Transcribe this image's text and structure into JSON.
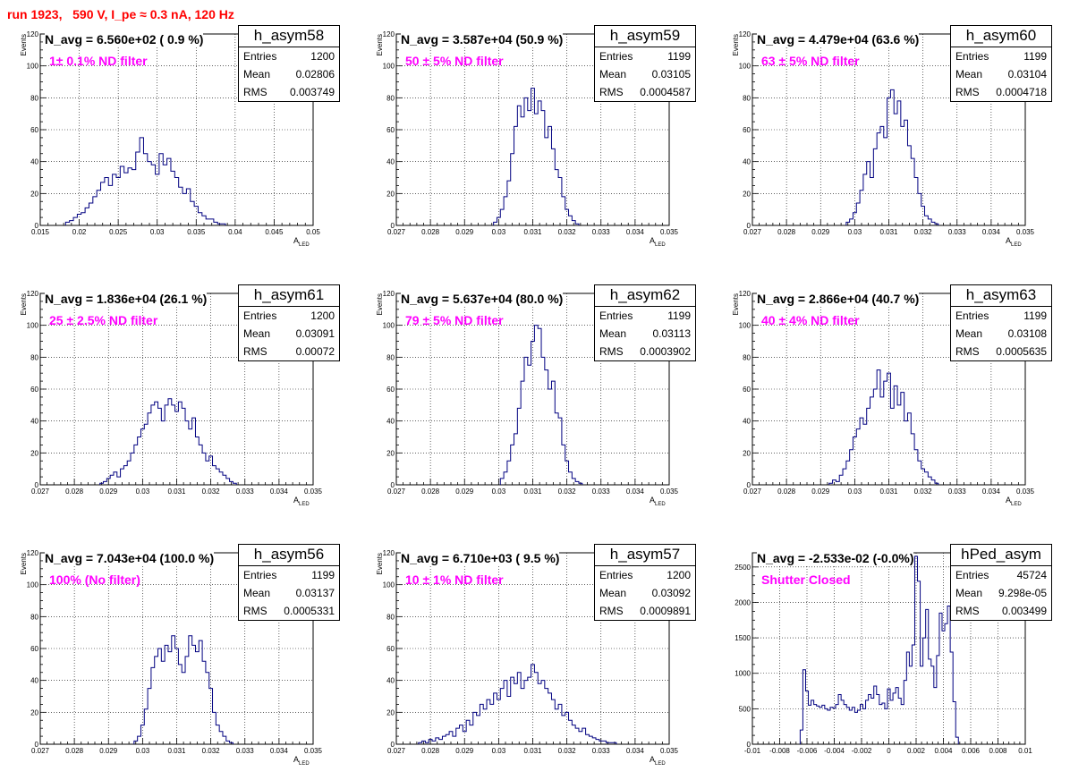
{
  "page_title": "run 1923,   590 V, I_pe ≈ 0.3 nA, 120 Hz",
  "colors": {
    "title": "#ff0000",
    "filter_label": "#ff00ff",
    "histogram": "#000080",
    "grid": "#000000"
  },
  "stats_labels": {
    "entries": "Entries",
    "mean": "Mean",
    "rms": "RMS"
  },
  "chart_data": [
    {
      "type": "histogram",
      "name": "h_asym58",
      "navg": "N_avg = 6.560e+02 ( 0.9 %)",
      "filter": "1± 0.1% ND filter",
      "entries": "1200",
      "mean": "0.02806",
      "rms": "0.003749",
      "xlabel_main": "A",
      "xlabel_sub": "LED",
      "ylabel": "Events",
      "xlim": [
        0.015,
        0.05
      ],
      "ylim": [
        0,
        120
      ],
      "xticks": [
        "0.015",
        "0.02",
        "0.025",
        "0.03",
        "0.035",
        "0.04",
        "0.045",
        "0.05"
      ],
      "xtick_values": [
        0.015,
        0.02,
        0.025,
        0.03,
        0.035,
        0.04,
        0.045,
        0.05
      ],
      "yticks": [
        "0",
        "20",
        "40",
        "60",
        "80",
        "100",
        "120"
      ],
      "ytick_values": [
        0,
        20,
        40,
        60,
        80,
        100,
        120
      ],
      "bin_width": 0.0005,
      "x": [
        0.0185,
        0.019,
        0.0195,
        0.02,
        0.0205,
        0.021,
        0.0215,
        0.022,
        0.0225,
        0.023,
        0.0235,
        0.024,
        0.0245,
        0.025,
        0.0255,
        0.026,
        0.0265,
        0.027,
        0.0275,
        0.028,
        0.0285,
        0.029,
        0.0295,
        0.03,
        0.0305,
        0.031,
        0.0315,
        0.032,
        0.0325,
        0.033,
        0.0335,
        0.034,
        0.0345,
        0.035,
        0.0355,
        0.036,
        0.0365,
        0.037,
        0.0375,
        0.038,
        0.0385
      ],
      "values": [
        2,
        3,
        5,
        7,
        8,
        11,
        14,
        18,
        22,
        27,
        30,
        25,
        32,
        30,
        37,
        33,
        36,
        35,
        46,
        55,
        45,
        40,
        38,
        32,
        45,
        38,
        42,
        34,
        30,
        24,
        20,
        23,
        15,
        12,
        8,
        6,
        4,
        4,
        2,
        1,
        1
      ]
    },
    {
      "type": "histogram",
      "name": "h_asym59",
      "navg": "N_avg = 3.587e+04 (50.9 %)",
      "filter": "50 ± 5% ND filter",
      "entries": "1199",
      "mean": "0.03105",
      "rms": "0.0004587",
      "xlabel_main": "A",
      "xlabel_sub": "LED",
      "ylabel": "Events",
      "xlim": [
        0.027,
        0.035
      ],
      "ylim": [
        0,
        120
      ],
      "xticks": [
        "0.027",
        "0.028",
        "0.029",
        "0.03",
        "0.031",
        "0.032",
        "0.033",
        "0.034",
        "0.035"
      ],
      "xtick_values": [
        0.027,
        0.028,
        0.029,
        0.03,
        0.031,
        0.032,
        0.033,
        0.034,
        0.035
      ],
      "yticks": [
        "0",
        "20",
        "40",
        "60",
        "80",
        "100",
        "120"
      ],
      "ytick_values": [
        0,
        20,
        40,
        60,
        80,
        100,
        120
      ],
      "bin_width": 0.0001,
      "x": [
        0.0299,
        0.03,
        0.0301,
        0.0302,
        0.0303,
        0.0304,
        0.0305,
        0.0306,
        0.0307,
        0.0308,
        0.0309,
        0.031,
        0.0311,
        0.0312,
        0.0313,
        0.0314,
        0.0315,
        0.0316,
        0.0317,
        0.0318,
        0.0319,
        0.032,
        0.0321,
        0.0322,
        0.0323
      ],
      "values": [
        2,
        5,
        10,
        18,
        28,
        45,
        62,
        75,
        68,
        80,
        72,
        86,
        70,
        78,
        72,
        55,
        62,
        48,
        35,
        30,
        18,
        10,
        6,
        3,
        1
      ]
    },
    {
      "type": "histogram",
      "name": "h_asym60",
      "navg": "N_avg = 4.479e+04 (63.6 %)",
      "filter": "63 ± 5% ND filter",
      "entries": "1199",
      "mean": "0.03104",
      "rms": "0.0004718",
      "xlabel_main": "A",
      "xlabel_sub": "LED",
      "ylabel": "Events",
      "xlim": [
        0.027,
        0.035
      ],
      "ylim": [
        0,
        120
      ],
      "xticks": [
        "0.027",
        "0.028",
        "0.029",
        "0.03",
        "0.031",
        "0.032",
        "0.033",
        "0.034",
        "0.035"
      ],
      "xtick_values": [
        0.027,
        0.028,
        0.029,
        0.03,
        0.031,
        0.032,
        0.033,
        0.034,
        0.035
      ],
      "yticks": [
        "0",
        "20",
        "40",
        "60",
        "80",
        "100",
        "120"
      ],
      "ytick_values": [
        0,
        20,
        40,
        60,
        80,
        100,
        120
      ],
      "bin_width": 0.0001,
      "x": [
        0.0298,
        0.0299,
        0.03,
        0.0301,
        0.0302,
        0.0303,
        0.0304,
        0.0305,
        0.0306,
        0.0307,
        0.0308,
        0.0309,
        0.031,
        0.0311,
        0.0312,
        0.0313,
        0.0314,
        0.0315,
        0.0316,
        0.0317,
        0.0318,
        0.0319,
        0.032,
        0.0321,
        0.0322,
        0.0323,
        0.0324
      ],
      "values": [
        2,
        4,
        8,
        14,
        22,
        32,
        40,
        30,
        48,
        58,
        62,
        55,
        80,
        85,
        70,
        78,
        62,
        66,
        50,
        42,
        30,
        20,
        12,
        6,
        4,
        2,
        1
      ]
    },
    {
      "type": "histogram",
      "name": "h_asym61",
      "navg": "N_avg = 1.836e+04 (26.1 %)",
      "filter": "25 ± 2.5% ND filter",
      "entries": "1200",
      "mean": "0.03091",
      "rms": "0.00072",
      "xlabel_main": "A",
      "xlabel_sub": "LED",
      "ylabel": "Events",
      "xlim": [
        0.027,
        0.035
      ],
      "ylim": [
        0,
        120
      ],
      "xticks": [
        "0.027",
        "0.028",
        "0.029",
        "0.03",
        "0.031",
        "0.032",
        "0.033",
        "0.034",
        "0.035"
      ],
      "xtick_values": [
        0.027,
        0.028,
        0.029,
        0.03,
        0.031,
        0.032,
        0.033,
        0.034,
        0.035
      ],
      "yticks": [
        "0",
        "20",
        "40",
        "60",
        "80",
        "100",
        "120"
      ],
      "ytick_values": [
        0,
        20,
        40,
        60,
        80,
        100,
        120
      ],
      "bin_width": 0.0001,
      "x": [
        0.0288,
        0.0289,
        0.029,
        0.0291,
        0.0292,
        0.0293,
        0.0294,
        0.0295,
        0.0296,
        0.0297,
        0.0298,
        0.0299,
        0.03,
        0.0301,
        0.0302,
        0.0303,
        0.0304,
        0.0305,
        0.0306,
        0.0307,
        0.0308,
        0.0309,
        0.031,
        0.0311,
        0.0312,
        0.0313,
        0.0314,
        0.0315,
        0.0316,
        0.0317,
        0.0318,
        0.0319,
        0.032,
        0.0321,
        0.0322,
        0.0323,
        0.0324,
        0.0325,
        0.0326,
        0.0327
      ],
      "values": [
        1,
        2,
        4,
        6,
        8,
        5,
        10,
        12,
        15,
        20,
        25,
        30,
        35,
        38,
        45,
        50,
        52,
        48,
        40,
        50,
        54,
        50,
        46,
        52,
        48,
        40,
        35,
        42,
        30,
        25,
        20,
        15,
        18,
        12,
        10,
        8,
        6,
        4,
        2,
        1
      ]
    },
    {
      "type": "histogram",
      "name": "h_asym62",
      "navg": "N_avg = 5.637e+04 (80.0 %)",
      "filter": "79 ± 5% ND filter",
      "entries": "1199",
      "mean": "0.03113",
      "rms": "0.0003902",
      "xlabel_main": "A",
      "xlabel_sub": "LED",
      "ylabel": "Events",
      "xlim": [
        0.027,
        0.035
      ],
      "ylim": [
        0,
        120
      ],
      "xticks": [
        "0.027",
        "0.028",
        "0.029",
        "0.03",
        "0.031",
        "0.032",
        "0.033",
        "0.034",
        "0.035"
      ],
      "xtick_values": [
        0.027,
        0.028,
        0.029,
        0.03,
        0.031,
        0.032,
        0.033,
        0.034,
        0.035
      ],
      "yticks": [
        "0",
        "20",
        "40",
        "60",
        "80",
        "100",
        "120"
      ],
      "ytick_values": [
        0,
        20,
        40,
        60,
        80,
        100,
        120
      ],
      "bin_width": 0.0001,
      "x": [
        0.0301,
        0.0302,
        0.0303,
        0.0304,
        0.0305,
        0.0306,
        0.0307,
        0.0308,
        0.0309,
        0.031,
        0.0311,
        0.0312,
        0.0313,
        0.0314,
        0.0315,
        0.0316,
        0.0317,
        0.0318,
        0.0319,
        0.032,
        0.0321,
        0.0322,
        0.0323,
        0.0324
      ],
      "values": [
        4,
        8,
        15,
        25,
        32,
        48,
        65,
        80,
        75,
        90,
        100,
        98,
        80,
        72,
        60,
        65,
        45,
        42,
        25,
        15,
        8,
        4,
        2,
        1
      ]
    },
    {
      "type": "histogram",
      "name": "h_asym63",
      "navg": "N_avg = 2.866e+04 (40.7 %)",
      "filter": "40 ± 4% ND filter",
      "entries": "1199",
      "mean": "0.03108",
      "rms": "0.0005635",
      "xlabel_main": "A",
      "xlabel_sub": "LED",
      "ylabel": "Events",
      "xlim": [
        0.027,
        0.035
      ],
      "ylim": [
        0,
        120
      ],
      "xticks": [
        "0.027",
        "0.028",
        "0.029",
        "0.03",
        "0.031",
        "0.032",
        "0.033",
        "0.034",
        "0.035"
      ],
      "xtick_values": [
        0.027,
        0.028,
        0.029,
        0.03,
        0.031,
        0.032,
        0.033,
        0.034,
        0.035
      ],
      "yticks": [
        "0",
        "20",
        "40",
        "60",
        "80",
        "100",
        "120"
      ],
      "ytick_values": [
        0,
        20,
        40,
        60,
        80,
        100,
        120
      ],
      "bin_width": 0.0001,
      "x": [
        0.0293,
        0.0294,
        0.0295,
        0.0296,
        0.0297,
        0.0298,
        0.0299,
        0.03,
        0.0301,
        0.0302,
        0.0303,
        0.0304,
        0.0305,
        0.0306,
        0.0307,
        0.0308,
        0.0309,
        0.031,
        0.0311,
        0.0312,
        0.0313,
        0.0314,
        0.0315,
        0.0316,
        0.0317,
        0.0318,
        0.0319,
        0.032,
        0.0321,
        0.0322,
        0.0323,
        0.0324
      ],
      "values": [
        1,
        3,
        2,
        6,
        10,
        15,
        22,
        30,
        35,
        42,
        38,
        48,
        55,
        60,
        72,
        55,
        65,
        70,
        48,
        62,
        50,
        58,
        40,
        45,
        32,
        22,
        15,
        10,
        8,
        5,
        3,
        1
      ]
    },
    {
      "type": "histogram",
      "name": "h_asym56",
      "navg": "N_avg = 7.043e+04 (100.0 %)",
      "filter": "100% (No filter)",
      "entries": "1199",
      "mean": "0.03137",
      "rms": "0.0005331",
      "xlabel_main": "A",
      "xlabel_sub": "LED",
      "ylabel": "Events",
      "xlim": [
        0.027,
        0.035
      ],
      "ylim": [
        0,
        120
      ],
      "xticks": [
        "0.027",
        "0.028",
        "0.029",
        "0.03",
        "0.031",
        "0.032",
        "0.033",
        "0.034",
        "0.035"
      ],
      "xtick_values": [
        0.027,
        0.028,
        0.029,
        0.03,
        0.031,
        0.032,
        0.033,
        0.034,
        0.035
      ],
      "yticks": [
        "0",
        "20",
        "40",
        "60",
        "80",
        "100",
        "120"
      ],
      "ytick_values": [
        0,
        20,
        40,
        60,
        80,
        100,
        120
      ],
      "bin_width": 0.0001,
      "x": [
        0.0298,
        0.0299,
        0.03,
        0.0301,
        0.0302,
        0.0303,
        0.0304,
        0.0305,
        0.0306,
        0.0307,
        0.0308,
        0.0309,
        0.031,
        0.0311,
        0.0312,
        0.0313,
        0.0314,
        0.0315,
        0.0316,
        0.0317,
        0.0318,
        0.0319,
        0.032,
        0.0321,
        0.0322,
        0.0323,
        0.0324,
        0.0325,
        0.0326
      ],
      "values": [
        2,
        5,
        12,
        22,
        35,
        48,
        55,
        60,
        52,
        62,
        58,
        68,
        60,
        50,
        45,
        55,
        68,
        62,
        58,
        65,
        52,
        45,
        35,
        20,
        12,
        8,
        5,
        2,
        1
      ]
    },
    {
      "type": "histogram",
      "name": "h_asym57",
      "navg": "N_avg = 6.710e+03 ( 9.5 %)",
      "filter": "10 ± 1% ND filter",
      "entries": "1200",
      "mean": "0.03092",
      "rms": "0.0009891",
      "xlabel_main": "A",
      "xlabel_sub": "LED",
      "ylabel": "Events",
      "xlim": [
        0.027,
        0.035
      ],
      "ylim": [
        0,
        120
      ],
      "xticks": [
        "0.027",
        "0.028",
        "0.029",
        "0.03",
        "0.031",
        "0.032",
        "0.033",
        "0.034",
        "0.035"
      ],
      "xtick_values": [
        0.027,
        0.028,
        0.029,
        0.03,
        0.031,
        0.032,
        0.033,
        0.034,
        0.035
      ],
      "yticks": [
        "0",
        "20",
        "40",
        "60",
        "80",
        "100",
        "120"
      ],
      "ytick_values": [
        0,
        20,
        40,
        60,
        80,
        100,
        120
      ],
      "bin_width": 0.0001,
      "x": [
        0.0277,
        0.0278,
        0.0279,
        0.028,
        0.0281,
        0.0282,
        0.0283,
        0.0284,
        0.0285,
        0.0286,
        0.0287,
        0.0288,
        0.0289,
        0.029,
        0.0291,
        0.0292,
        0.0293,
        0.0294,
        0.0295,
        0.0296,
        0.0297,
        0.0298,
        0.0299,
        0.03,
        0.0301,
        0.0302,
        0.0303,
        0.0304,
        0.0305,
        0.0306,
        0.0307,
        0.0308,
        0.0309,
        0.031,
        0.0311,
        0.0312,
        0.0313,
        0.0314,
        0.0315,
        0.0316,
        0.0317,
        0.0318,
        0.0319,
        0.032,
        0.0321,
        0.0322,
        0.0323,
        0.0324,
        0.0325,
        0.0326,
        0.0327,
        0.0328,
        0.0329,
        0.033,
        0.0331,
        0.0332,
        0.0333,
        0.0334
      ],
      "values": [
        1,
        2,
        1,
        3,
        2,
        4,
        3,
        5,
        6,
        8,
        5,
        10,
        12,
        8,
        15,
        12,
        20,
        18,
        25,
        22,
        28,
        25,
        32,
        28,
        35,
        40,
        30,
        42,
        38,
        45,
        35,
        40,
        42,
        50,
        45,
        38,
        40,
        35,
        32,
        28,
        22,
        25,
        18,
        20,
        15,
        12,
        10,
        8,
        10,
        6,
        5,
        4,
        3,
        2,
        2,
        1,
        1,
        1
      ]
    },
    {
      "type": "histogram",
      "name": "hPed_asym",
      "navg": "N_avg = -2.533e-02 (-0.0%)",
      "filter": "Shutter Closed",
      "entries": "45724",
      "mean": "9.298e-05",
      "rms": "0.003499",
      "xlabel_main": "",
      "xlabel_sub": "",
      "ylabel": "",
      "xlim": [
        -0.01,
        0.01
      ],
      "ylim": [
        0,
        2700
      ],
      "xticks": [
        "-0.01",
        "-0.008",
        "-0.006",
        "-0.004",
        "-0.002",
        "0",
        "0.002",
        "0.004",
        "0.006",
        "0.008",
        "0.01"
      ],
      "xtick_values": [
        -0.01,
        -0.008,
        -0.006,
        -0.004,
        -0.002,
        0,
        0.002,
        0.004,
        0.006,
        0.008,
        0.01
      ],
      "yticks": [
        "0",
        "500",
        "1000",
        "1500",
        "2000",
        "2500"
      ],
      "ytick_values": [
        0,
        500,
        1000,
        1500,
        2000,
        2500
      ],
      "bin_width": 0.0002,
      "x": [
        -0.0064,
        -0.0062,
        -0.006,
        -0.0058,
        -0.0056,
        -0.0054,
        -0.0052,
        -0.005,
        -0.0048,
        -0.0046,
        -0.0044,
        -0.0042,
        -0.004,
        -0.0038,
        -0.0036,
        -0.0034,
        -0.0032,
        -0.003,
        -0.0028,
        -0.0026,
        -0.0024,
        -0.0022,
        -0.002,
        -0.0018,
        -0.0016,
        -0.0014,
        -0.0012,
        -0.001,
        -0.0008,
        -0.0006,
        -0.0004,
        -0.0002,
        0,
        0.0002,
        0.0004,
        0.0006,
        0.0008,
        0.001,
        0.0012,
        0.0014,
        0.0016,
        0.0018,
        0.002,
        0.0022,
        0.0024,
        0.0026,
        0.0028,
        0.003,
        0.0032,
        0.0034,
        0.0036,
        0.0038,
        0.004,
        0.0042,
        0.0044,
        0.0046,
        0.0048,
        0.005
      ],
      "values": [
        200,
        1050,
        750,
        550,
        620,
        560,
        540,
        520,
        550,
        500,
        480,
        520,
        510,
        560,
        700,
        620,
        560,
        520,
        480,
        520,
        450,
        480,
        560,
        500,
        620,
        700,
        650,
        820,
        700,
        560,
        580,
        500,
        780,
        620,
        720,
        800,
        650,
        560,
        900,
        1300,
        1100,
        1400,
        2650,
        2300,
        1100,
        1500,
        1900,
        1200,
        1100,
        800,
        1250,
        1850,
        1600,
        1700,
        1950,
        1300,
        600,
        100
      ]
    }
  ]
}
